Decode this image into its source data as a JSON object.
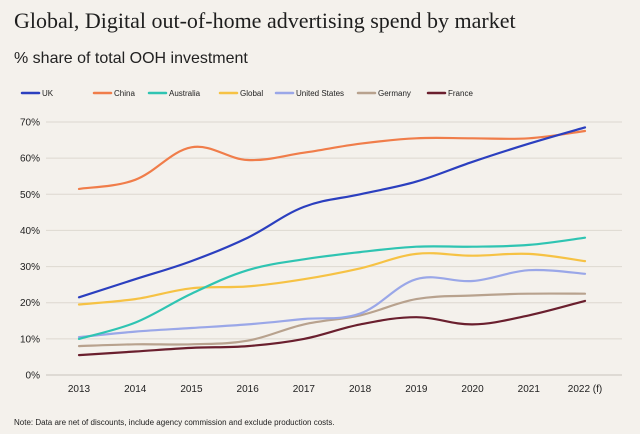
{
  "title": "Global, Digital out-of-home advertising spend by market",
  "subtitle": "% share of total OOH investment",
  "note": "Note: Data are net of discounts, include agency commission and exclude production costs.",
  "chart_data": {
    "type": "line",
    "x": [
      "2013",
      "2014",
      "2015",
      "2016",
      "2017",
      "2018",
      "2019",
      "2020",
      "2021",
      "2022 (f)"
    ],
    "ylim": [
      0,
      70
    ],
    "yticks": [
      "0%",
      "10%",
      "20%",
      "30%",
      "40%",
      "50%",
      "60%",
      "70%"
    ],
    "grid": true,
    "legend": "top",
    "series": [
      {
        "name": "UK",
        "color": "#2b3fbf",
        "values": [
          21.5,
          26.5,
          31.5,
          38,
          46.5,
          50,
          53.5,
          59,
          64,
          68.5
        ]
      },
      {
        "name": "China",
        "color": "#f07d4a",
        "values": [
          51.5,
          54,
          63,
          59.5,
          61.5,
          64,
          65.5,
          65.5,
          65.5,
          67.5
        ]
      },
      {
        "name": "Australia",
        "color": "#2fc4b2",
        "values": [
          10,
          14.5,
          22.5,
          29,
          32,
          34,
          35.5,
          35.5,
          36,
          38
        ]
      },
      {
        "name": "Global",
        "color": "#f6c244",
        "values": [
          19.5,
          21,
          24,
          24.5,
          26.5,
          29.5,
          33.5,
          33,
          33.5,
          31.5
        ]
      },
      {
        "name": "United States",
        "color": "#9aa7e8",
        "values": [
          10.5,
          12,
          13,
          14,
          15.5,
          17,
          26.5,
          26,
          29,
          28
        ]
      },
      {
        "name": "Germany",
        "color": "#b8a28e",
        "values": [
          8,
          8.5,
          8.5,
          9.5,
          14,
          16.5,
          21,
          22,
          22.5,
          22.5
        ]
      },
      {
        "name": "France",
        "color": "#6a1f2e",
        "values": [
          5.5,
          6.5,
          7.5,
          8,
          10,
          14,
          16,
          14,
          16.5,
          20.5
        ]
      }
    ]
  }
}
